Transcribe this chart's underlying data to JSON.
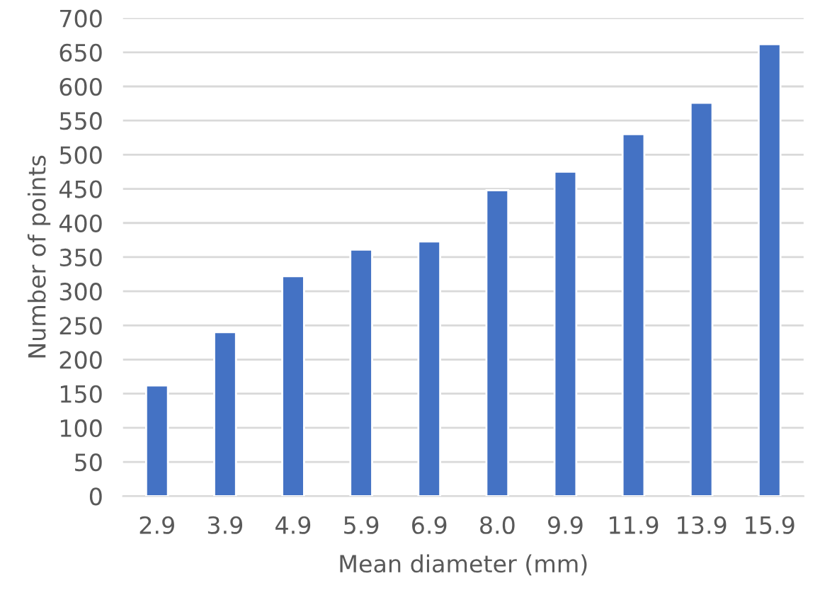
{
  "chart_data": {
    "type": "bar",
    "xlabel": "Mean diameter (mm)",
    "ylabel": "Number of points",
    "categories": [
      "2.9",
      "3.9",
      "4.9",
      "5.9",
      "6.9",
      "8.0",
      "9.9",
      "11.9",
      "13.9",
      "15.9"
    ],
    "values": [
      162,
      240,
      322,
      361,
      373,
      448,
      475,
      530,
      576,
      662
    ],
    "color": "#4472c4",
    "ylim": [
      0,
      700
    ],
    "yticks": [
      0,
      50,
      100,
      150,
      200,
      250,
      300,
      350,
      400,
      450,
      500,
      550,
      600,
      650,
      700
    ],
    "grid": "y"
  }
}
